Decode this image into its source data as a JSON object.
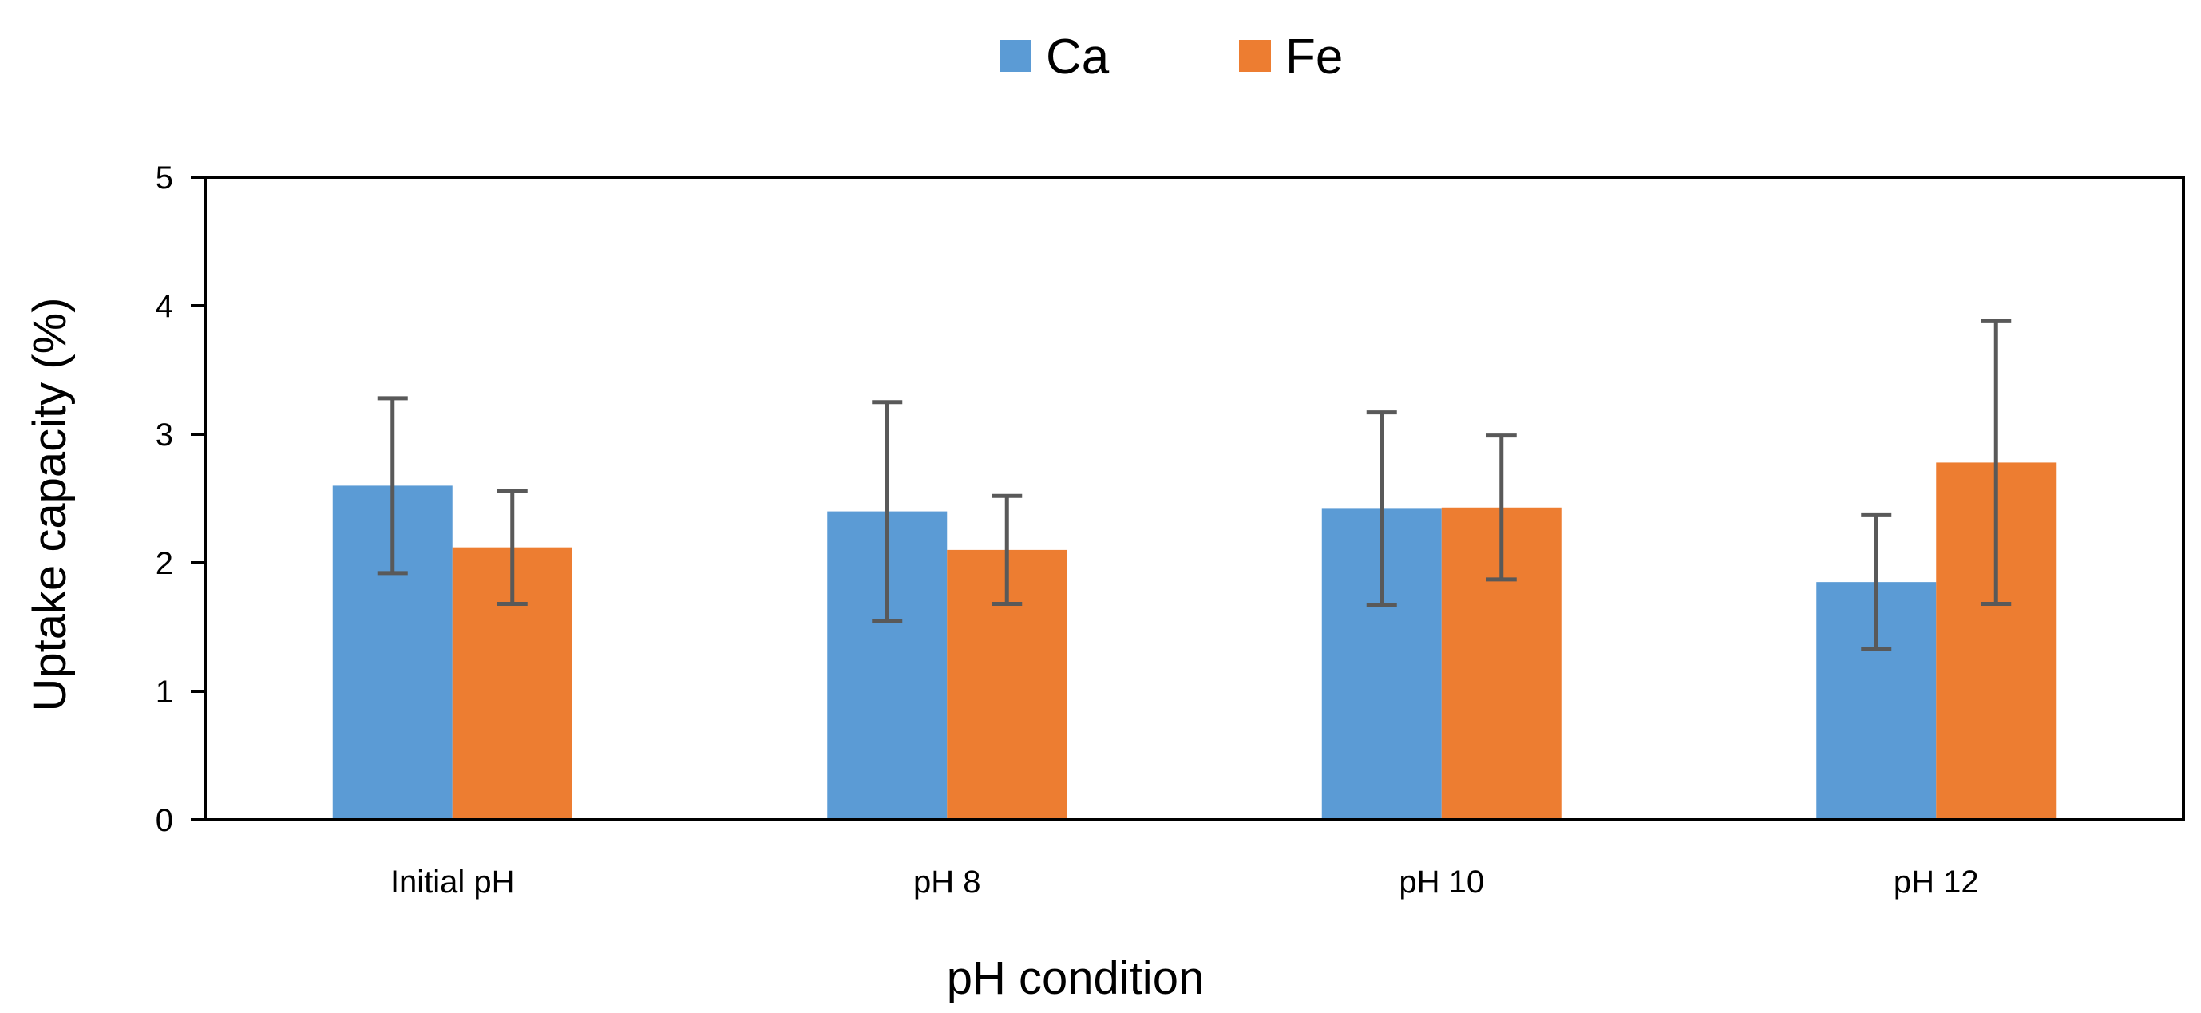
{
  "chart_data": {
    "type": "bar",
    "title": "",
    "categories": [
      "Initial pH",
      "pH 8",
      "pH 10",
      "pH 12"
    ],
    "series": [
      {
        "name": "Ca",
        "color": "#5B9BD5",
        "values": [
          2.6,
          2.4,
          2.42,
          1.85
        ],
        "errors": [
          0.68,
          0.85,
          0.75,
          0.52
        ]
      },
      {
        "name": "Fe",
        "color": "#ED7D31",
        "values": [
          2.12,
          2.1,
          2.43,
          2.78
        ],
        "errors": [
          0.44,
          0.42,
          0.56,
          1.1
        ]
      }
    ],
    "xlabel": "pH condition",
    "ylabel": "Uptake capacity (%)",
    "ylim": [
      0,
      5
    ],
    "yticks": [
      0,
      1,
      2,
      3,
      4,
      5
    ],
    "grid": false,
    "legend_position": "top-center",
    "error_bar_color": "#595959"
  }
}
